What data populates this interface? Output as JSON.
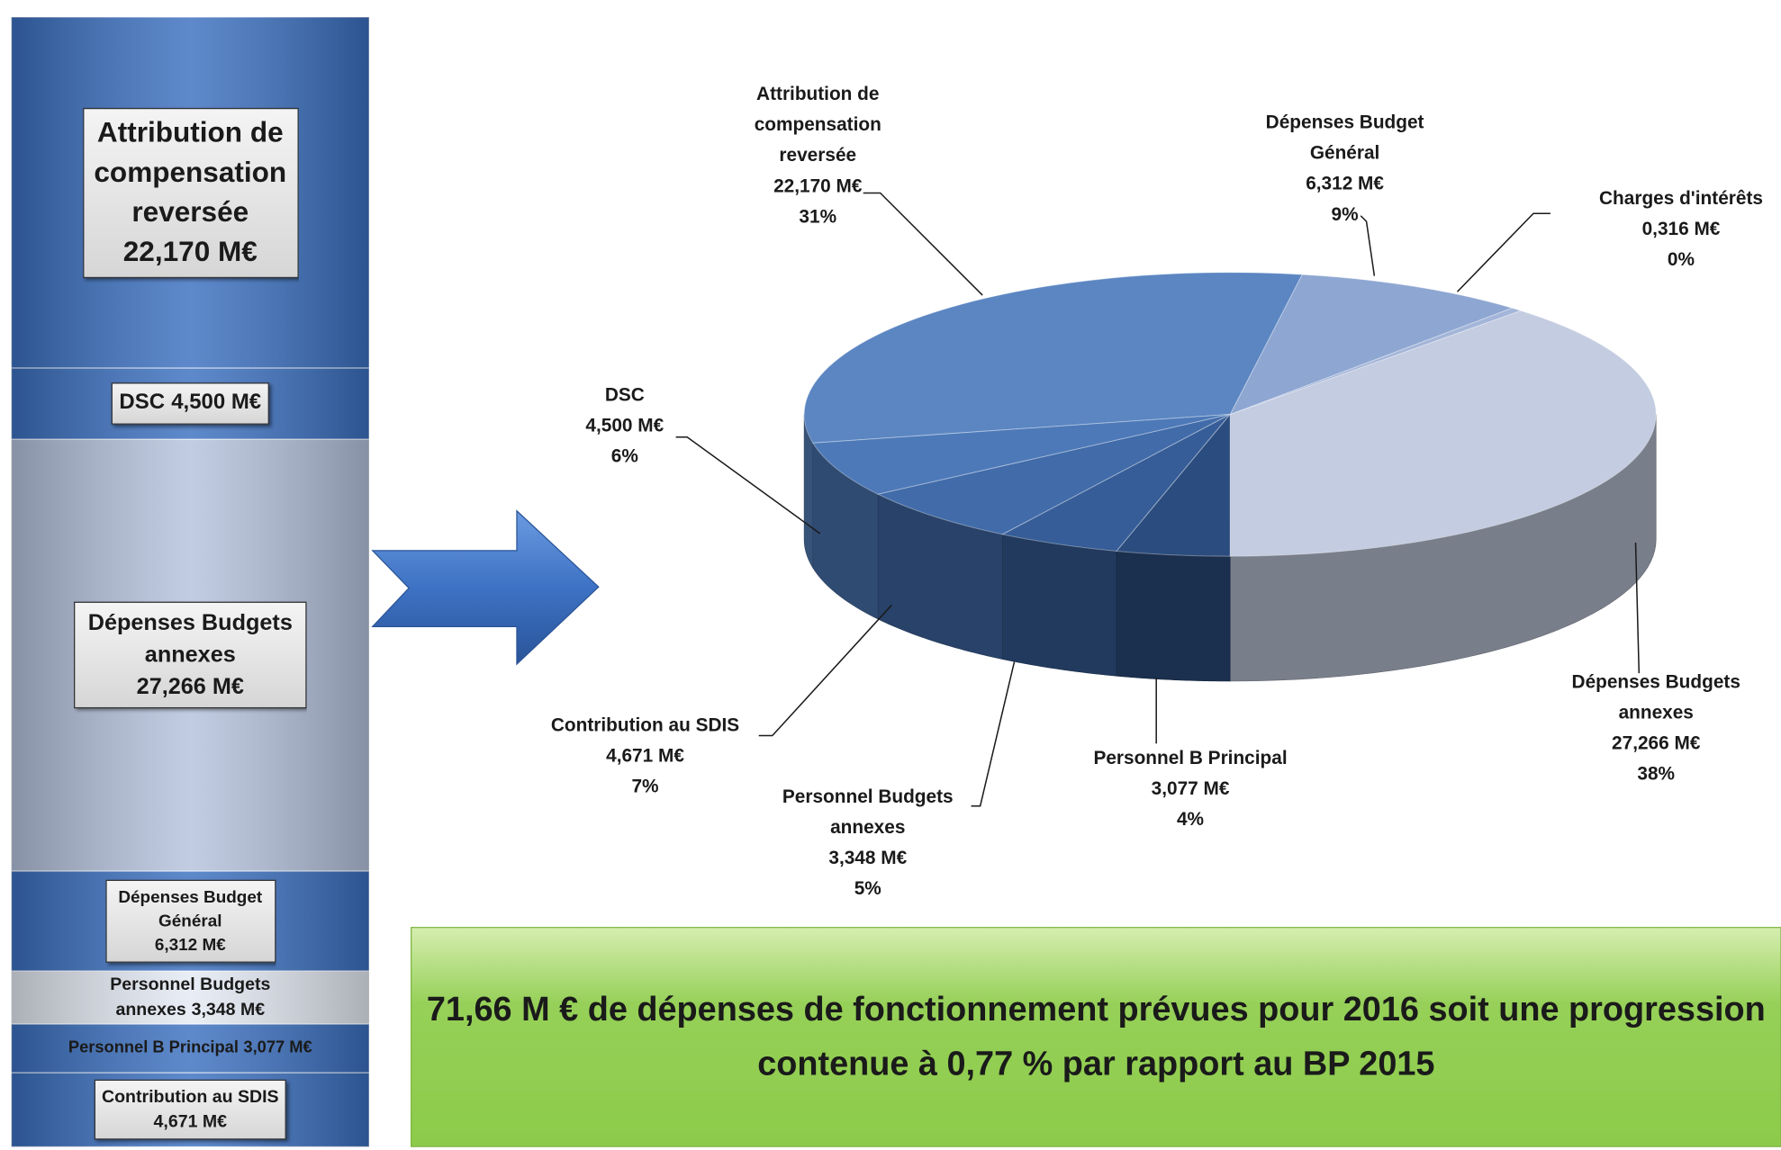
{
  "chart_data": [
    {
      "type": "stacked_bar",
      "categories": [
        "Attribution de compensation reversée",
        "DSC",
        "Dépenses Budgets annexes",
        "Dépenses Budget Général",
        "Personnel Budgets annexes",
        "Personnel B Principal",
        "Contribution au SDIS"
      ],
      "values": [
        22.17,
        4.5,
        27.266,
        6.312,
        3.348,
        3.077,
        4.671
      ],
      "value_labels": [
        "22,170 M€",
        "4,500 M€",
        "27,266 M€",
        "6,312 M€",
        "3,348 M€",
        "3,077 M€",
        "4,671 M€"
      ],
      "colors": [
        "#3a6fbf",
        "#3a6fbf",
        "#b4c1dc",
        "#3a6fbf",
        "#e4e9f3",
        "#3a6fbf",
        "#3a6fbf"
      ]
    },
    {
      "type": "pie",
      "categories": [
        "Dépenses Budgets annexes",
        "Charges d'intérêts",
        "Dépenses Budget Général",
        "Attribution de compensation reversée",
        "DSC",
        "Contribution au SDIS",
        "Personnel Budgets annexes",
        "Personnel B Principal"
      ],
      "values": [
        27.266,
        0.316,
        6.312,
        22.17,
        4.5,
        4.671,
        3.348,
        3.077
      ],
      "value_labels": [
        "27,266 M€",
        "0,316 M€",
        "6,312 M€",
        "22,170 M€",
        "4,500 M€",
        "4,671 M€",
        "3,348 M€",
        "3,077 M€"
      ],
      "shares": [
        38,
        0,
        9,
        31,
        6,
        7,
        5,
        4
      ],
      "share_labels": [
        "38%",
        "0%",
        "9%",
        "31%",
        "6%",
        "7%",
        "5%",
        "4%"
      ],
      "colors": [
        "#c3cce0",
        "#a3b5d8",
        "#8ea6d2",
        "#5b86c2",
        "#4d79b8",
        "#416ba9",
        "#365d97",
        "#2b4c7e"
      ],
      "annotation": "71,66 M € de dépenses de fonctionnement prévues pour 2016 soit une progression contenue à 0,77 % par rapport au BP 2015"
    }
  ]
}
